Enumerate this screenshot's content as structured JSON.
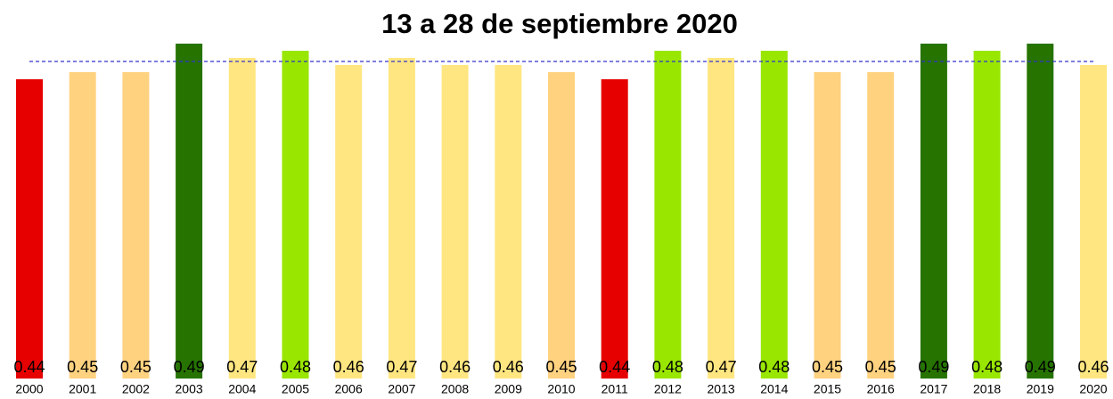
{
  "chart_data": {
    "type": "bar",
    "title": "13 a 28 de septiembre 2020",
    "categories": [
      "2000",
      "2001",
      "2002",
      "2003",
      "2004",
      "2005",
      "2006",
      "2007",
      "2008",
      "2009",
      "2010",
      "2011",
      "2012",
      "2013",
      "2014",
      "2015",
      "2016",
      "2017",
      "2018",
      "2019",
      "2020"
    ],
    "values": [
      0.44,
      0.45,
      0.45,
      0.49,
      0.47,
      0.48,
      0.46,
      0.47,
      0.46,
      0.46,
      0.45,
      0.44,
      0.48,
      0.47,
      0.48,
      0.45,
      0.45,
      0.49,
      0.48,
      0.49,
      0.46
    ],
    "colors": [
      "#e60000",
      "#ffd280",
      "#ffd280",
      "#267300",
      "#ffe680",
      "#99e600",
      "#ffe680",
      "#ffe680",
      "#ffe680",
      "#ffe680",
      "#ffd280",
      "#e60000",
      "#99e600",
      "#ffe680",
      "#99e600",
      "#ffd280",
      "#ffd280",
      "#267300",
      "#99e600",
      "#267300",
      "#ffe680"
    ],
    "ylim": [
      0.02,
      0.5
    ],
    "reference_line": 0.465,
    "reference_color": "#3333cc",
    "grid": false
  }
}
